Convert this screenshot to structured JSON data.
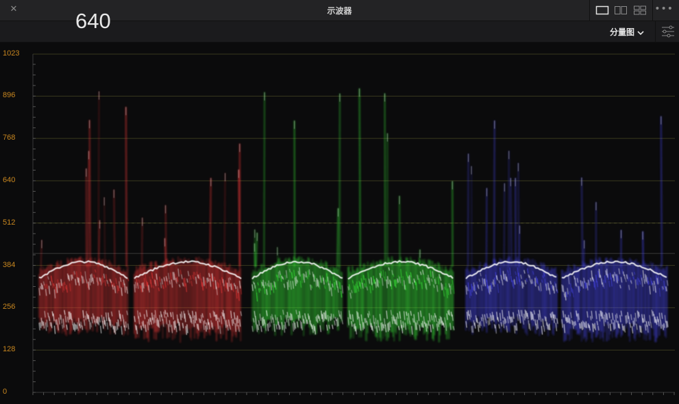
{
  "window": {
    "title": "示波器",
    "close_icon": "close-icon",
    "more_icon": "more-icon"
  },
  "toolbar": {
    "readout": "640",
    "mode_label": "分量图",
    "mode_icon": "chevron-down-icon",
    "settings_icon": "sliders-icon"
  },
  "scope": {
    "y_ticks": [
      "1023",
      "896",
      "768",
      "640",
      "512",
      "384",
      "256",
      "128",
      "0"
    ],
    "tick_color": "#c9871f",
    "channels": [
      {
        "name": "red",
        "color": "#ff3b3b"
      },
      {
        "name": "green",
        "color": "#3dff3d"
      },
      {
        "name": "blue",
        "color": "#4a4aff"
      }
    ]
  }
}
